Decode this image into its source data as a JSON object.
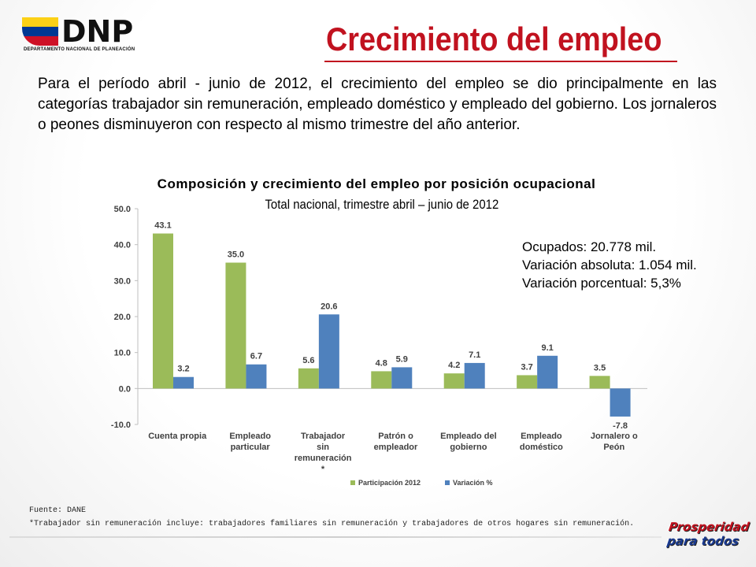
{
  "logo": {
    "name": "DNP",
    "subtitle": "DEPARTAMENTO NACIONAL DE PLANEACIÓN",
    "colors": [
      "#fcd116",
      "#003893",
      "#ce1126"
    ]
  },
  "slide": {
    "title": "Crecimiento del empleo",
    "intro": "Para el período abril - junio de 2012, el crecimiento del empleo se dio principalmente en las categorías trabajador sin remuneración, empleado doméstico y empleado del gobierno. Los jornaleros o peones disminuyeron con respecto al mismo trimestre del año anterior."
  },
  "stats": {
    "line1": "Ocupados: 20.778 mil.",
    "line2": "Variación absoluta: 1.054 mil.",
    "line3": "Variación porcentual: 5,3%"
  },
  "chart_data": {
    "type": "bar",
    "title": "Composición y crecimiento del empleo por posición ocupacional",
    "subtitle": "Total nacional, trimestre abril – junio de 2012",
    "categories": [
      [
        "Cuenta propia"
      ],
      [
        "Empleado",
        "particular"
      ],
      [
        "Trabajador",
        "sin",
        "remuneración",
        "*"
      ],
      [
        "Patrón o",
        "empleador"
      ],
      [
        "Empleado del",
        "gobierno"
      ],
      [
        "Empleado",
        "doméstico"
      ],
      [
        "Jornalero o",
        "Peón"
      ]
    ],
    "series": [
      {
        "name": "Participación 2012",
        "color": "#9bbb59",
        "values": [
          43.1,
          35.0,
          5.6,
          4.8,
          4.2,
          3.7,
          3.5
        ]
      },
      {
        "name": "Variación %",
        "color": "#4f81bd",
        "values": [
          3.2,
          6.7,
          20.6,
          5.9,
          7.1,
          9.1,
          -7.8
        ]
      }
    ],
    "ylim": [
      -10,
      50
    ],
    "yticks": [
      "50.0",
      "40.0",
      "30.0",
      "20.0",
      "10.0",
      "0.0",
      "-10.0"
    ],
    "legend_position": "bottom",
    "grid": false
  },
  "footer": {
    "source": "Fuente: DANE",
    "note": "*Trabajador sin remuneración incluye: trabajadores familiares sin remuneración y trabajadores de otros  hogares sin remuneración."
  },
  "brand": {
    "line1": "Prosperidad",
    "line2": "para todos"
  }
}
